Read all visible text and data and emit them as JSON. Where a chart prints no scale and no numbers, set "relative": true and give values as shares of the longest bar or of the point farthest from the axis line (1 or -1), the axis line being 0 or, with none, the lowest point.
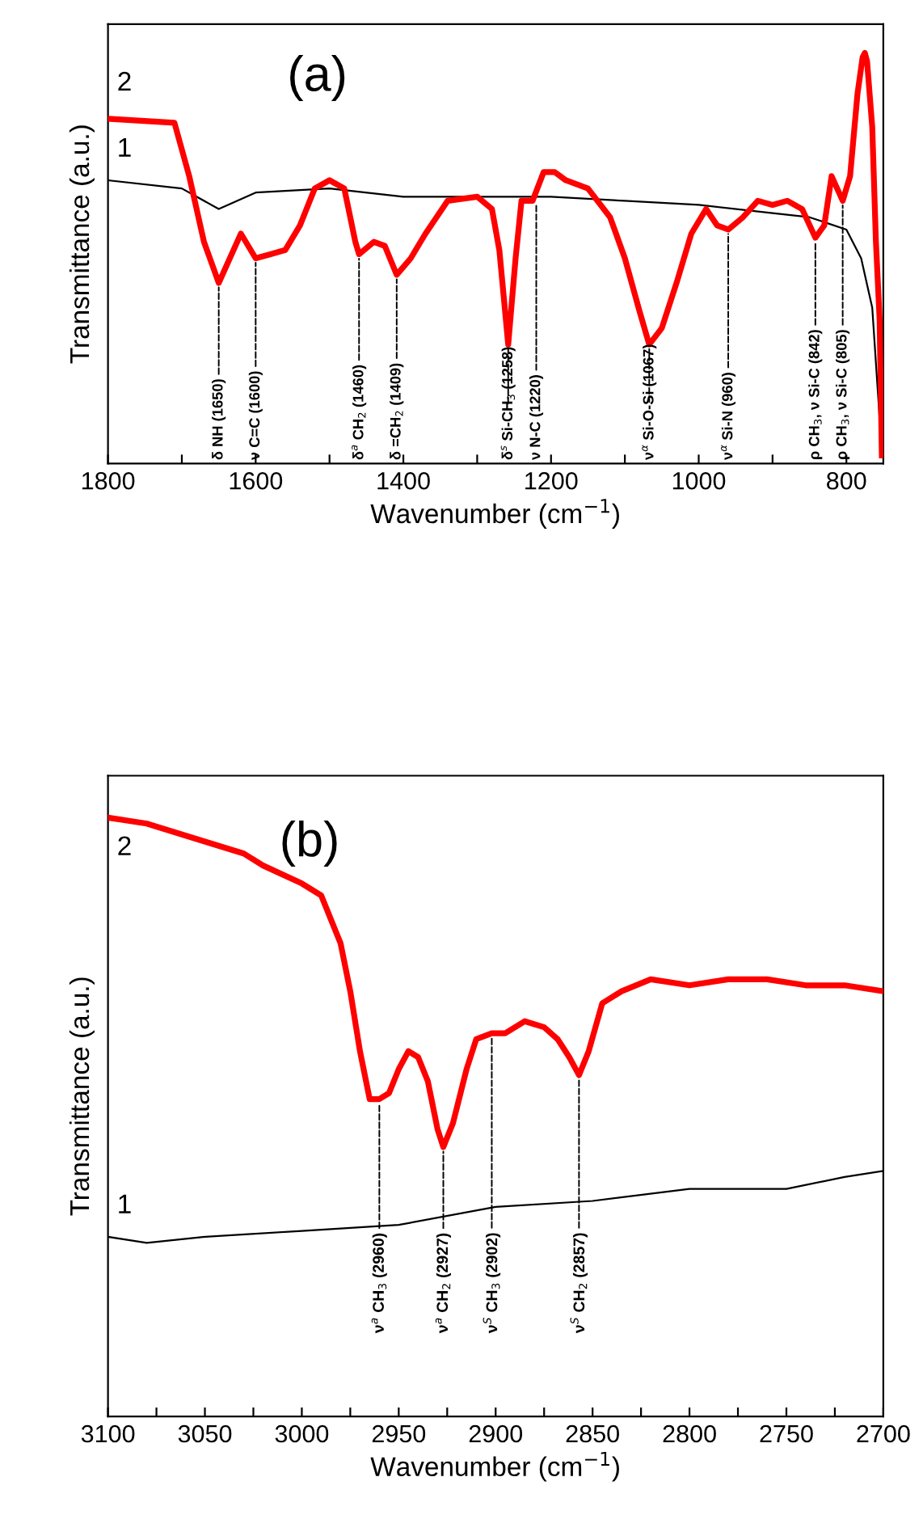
{
  "chart_data": [
    {
      "type": "line",
      "title": "(a)",
      "xlabel": "Wavenumber (cm$^{−1}$)",
      "ylabel": "Transmittance (a.u.)",
      "relative": true,
      "xlim": [
        1800,
        750
      ],
      "xticks": [
        1800,
        {
          "value": 1700,
          "label": null
        },
        1600,
        {
          "value": 1500,
          "label": null
        },
        1400,
        {
          "value": 1300,
          "label": null
        },
        1200,
        {
          "value": 1100,
          "label": null
        },
        1000,
        {
          "value": 900,
          "label": null
        },
        800
      ],
      "tick_labels": "x",
      "grid": false,
      "legend": false,
      "marker": "none",
      "line_style": "solid",
      "series": [
        {
          "name": "1",
          "color": "#000000",
          "x": [
            1800,
            1700,
            1650,
            1600,
            1500,
            1400,
            1300,
            1200,
            1100,
            1000,
            900,
            850,
            800,
            780,
            765,
            755,
            750
          ],
          "values": [
            0.69,
            0.67,
            0.62,
            0.66,
            0.67,
            0.65,
            0.65,
            0.65,
            0.64,
            0.63,
            0.61,
            0.6,
            0.57,
            0.5,
            0.38,
            0.11,
            0.05
          ]
        },
        {
          "name": "2",
          "color": "#ff0000",
          "x": [
            1800,
            1710,
            1690,
            1670,
            1650,
            1635,
            1620,
            1600,
            1580,
            1560,
            1540,
            1520,
            1500,
            1480,
            1465,
            1460,
            1440,
            1425,
            1409,
            1390,
            1370,
            1340,
            1300,
            1280,
            1270,
            1258,
            1248,
            1240,
            1225,
            1210,
            1195,
            1180,
            1150,
            1120,
            1100,
            1080,
            1067,
            1050,
            1030,
            1010,
            990,
            975,
            960,
            940,
            920,
            900,
            880,
            860,
            842,
            830,
            820,
            805,
            795,
            785,
            778,
            775,
            772,
            765,
            760,
            755,
            752
          ],
          "values": [
            0.84,
            0.83,
            0.7,
            0.54,
            0.44,
            0.5,
            0.56,
            0.5,
            0.51,
            0.52,
            0.58,
            0.67,
            0.69,
            0.67,
            0.54,
            0.51,
            0.54,
            0.53,
            0.46,
            0.5,
            0.56,
            0.64,
            0.65,
            0.62,
            0.52,
            0.29,
            0.5,
            0.64,
            0.64,
            0.71,
            0.71,
            0.69,
            0.67,
            0.6,
            0.5,
            0.37,
            0.29,
            0.33,
            0.44,
            0.56,
            0.62,
            0.58,
            0.57,
            0.6,
            0.64,
            0.63,
            0.64,
            0.62,
            0.55,
            0.58,
            0.7,
            0.64,
            0.7,
            0.9,
            0.99,
            1.0,
            0.98,
            0.82,
            0.54,
            0.35,
            0.02
          ]
        }
      ],
      "annotations": [
        {
          "text": "δ NH (1650)",
          "x": 1650,
          "y": 0.44
        },
        {
          "text": "ν C=C (1600)",
          "x": 1600,
          "y": 0.5
        },
        {
          "text": "δ$^{a}$ CH$_{2}$ (1460)",
          "x": 1460,
          "y": 0.51
        },
        {
          "text": "δ =CH$_{2}$ (1409)",
          "x": 1409,
          "y": 0.46
        },
        {
          "text": "δ$^{s}$ Si-CH$_{3}$ (1258)",
          "x": 1258,
          "y": 0.29
        },
        {
          "text": "ν N-C (1220)",
          "x": 1220,
          "y": 0.64
        },
        {
          "text": "ν$^{α}$ Si-O-Si (1067)",
          "x": 1067,
          "y": 0.29
        },
        {
          "text": "ν$^{α}$ Si-N (960)",
          "x": 960,
          "y": 0.57
        },
        {
          "text": "ρ CH$_{3}$, ν Si-C (842)",
          "x": 842,
          "y": 0.55
        },
        {
          "text": "ρ CH$_{3}$, ν Si-C (805)",
          "x": 805,
          "y": 0.64
        }
      ]
    },
    {
      "type": "line",
      "title": "(b)",
      "xlabel": "Wavenumber (cm$^{−1}$)",
      "ylabel": "Transmittance (a.u.)",
      "relative": true,
      "xlim": [
        3100,
        2700
      ],
      "xticks": [
        3100,
        {
          "value": 3075,
          "label": null
        },
        3050,
        {
          "value": 3025,
          "label": null
        },
        3000,
        {
          "value": 2975,
          "label": null
        },
        2950,
        {
          "value": 2925,
          "label": null
        },
        2900,
        {
          "value": 2875,
          "label": null
        },
        2850,
        {
          "value": 2825,
          "label": null
        },
        2800,
        {
          "value": 2775,
          "label": null
        },
        2750,
        {
          "value": 2725,
          "label": null
        },
        2700
      ],
      "tick_labels": "x",
      "grid": false,
      "legend": false,
      "marker": "none",
      "line_style": "solid",
      "series": [
        {
          "name": "1",
          "color": "#000000",
          "x": [
            3100,
            3080,
            3050,
            3000,
            2950,
            2900,
            2850,
            2800,
            2750,
            2720,
            2700
          ],
          "values": [
            0.3,
            0.29,
            0.3,
            0.31,
            0.32,
            0.35,
            0.36,
            0.38,
            0.38,
            0.4,
            0.41
          ]
        },
        {
          "name": "2",
          "color": "#ff0000",
          "x": [
            3100,
            3080,
            3050,
            3030,
            3020,
            3000,
            2990,
            2980,
            2975,
            2970,
            2965,
            2960,
            2955,
            2950,
            2945,
            2940,
            2935,
            2930,
            2927,
            2922,
            2915,
            2910,
            2902,
            2895,
            2885,
            2875,
            2868,
            2862,
            2857,
            2852,
            2845,
            2835,
            2820,
            2800,
            2780,
            2760,
            2740,
            2720,
            2700
          ],
          "values": [
            1.0,
            0.99,
            0.96,
            0.94,
            0.92,
            0.89,
            0.87,
            0.79,
            0.71,
            0.61,
            0.53,
            0.53,
            0.54,
            0.58,
            0.61,
            0.6,
            0.56,
            0.48,
            0.45,
            0.49,
            0.58,
            0.63,
            0.64,
            0.64,
            0.66,
            0.65,
            0.63,
            0.6,
            0.57,
            0.61,
            0.69,
            0.71,
            0.73,
            0.72,
            0.73,
            0.73,
            0.72,
            0.72,
            0.71
          ]
        }
      ],
      "annotations": [
        {
          "text": "ν$^{a}$ CH$_{3}$ (2960)",
          "x": 2960,
          "y": 0.53
        },
        {
          "text": "ν$^{a}$ CH$_{2}$ (2927)",
          "x": 2927,
          "y": 0.45
        },
        {
          "text": "ν$^{S}$ CH$_{3}$ (2902)",
          "x": 2902,
          "y": 0.64
        },
        {
          "text": "ν$^{S}$ CH$_{2}$ (2857)",
          "x": 2857,
          "y": 0.57
        }
      ]
    }
  ]
}
